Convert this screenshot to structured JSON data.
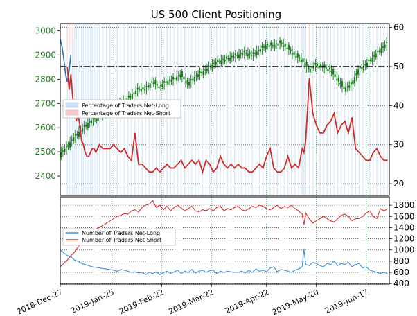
{
  "chart_data": [
    {
      "type": "line",
      "title": "US 500 Client Positioning",
      "left_axis": {
        "ticks": [
          2400,
          2500,
          2600,
          2700,
          2800,
          2900,
          3000
        ],
        "range": [
          2320,
          3030
        ],
        "color": "#1a7d1a"
      },
      "right_axis": {
        "ticks": [
          20,
          30,
          40,
          50,
          60
        ],
        "range": [
          17,
          61
        ]
      },
      "x_axis": {
        "ticks": [
          "2018-Dec-27",
          "2019-Jan-25",
          "2019-Feb-22",
          "2019-Mar-22",
          "2019-Apr-22",
          "2019-May-20",
          "2019-Jun-17"
        ],
        "tick_day_index": [
          0,
          29,
          57,
          85,
          116,
          144,
          172
        ],
        "range_days": [
          0,
          185
        ]
      },
      "reference_line": {
        "axis": "right",
        "value": 50,
        "style": "dash-dot"
      },
      "legend": {
        "placement": "left",
        "entries": [
          {
            "name": "Percentage of Traders Net-Long",
            "color": "#a9cdea"
          },
          {
            "name": "Percentage of Traders Net-Short",
            "color": "#f2a7a7"
          }
        ]
      },
      "price_series": {
        "name": "US 500 price",
        "axis": "left",
        "color": "#1d7a1d",
        "days": [
          0,
          4,
          8,
          12,
          16,
          20,
          24,
          28,
          32,
          36,
          40,
          44,
          48,
          52,
          56,
          60,
          64,
          68,
          72,
          76,
          80,
          84,
          88,
          92,
          96,
          100,
          104,
          108,
          112,
          116,
          120,
          124,
          128,
          132,
          136,
          140,
          144,
          148,
          152,
          156,
          160,
          164,
          168,
          172,
          176,
          180,
          184
        ],
        "values": [
          2490,
          2520,
          2560,
          2590,
          2620,
          2640,
          2660,
          2670,
          2690,
          2710,
          2730,
          2760,
          2760,
          2790,
          2770,
          2790,
          2800,
          2820,
          2780,
          2810,
          2830,
          2850,
          2870,
          2880,
          2890,
          2900,
          2910,
          2900,
          2920,
          2940,
          2940,
          2950,
          2930,
          2900,
          2880,
          2840,
          2860,
          2850,
          2840,
          2800,
          2760,
          2780,
          2840,
          2860,
          2890,
          2920,
          2950
        ]
      },
      "series": [
        {
          "name": "Percentage of Traders Net-Long",
          "axis": "right",
          "color": "#2c6fb5",
          "days": [
            0,
            1,
            2,
            3,
            4,
            5,
            6
          ],
          "values": [
            57,
            55,
            52,
            48,
            46,
            49,
            53
          ]
        },
        {
          "name": "Percentage of Traders Net-Short",
          "axis": "right",
          "color": "#d12a2a",
          "days": [
            4,
            5,
            6,
            7,
            8,
            9,
            10,
            11,
            12,
            13,
            14,
            15,
            16,
            17,
            18,
            19,
            20,
            21,
            22,
            24,
            26,
            28,
            30,
            32,
            34,
            36,
            38,
            40,
            42,
            44,
            46,
            48,
            50,
            52,
            54,
            56,
            58,
            60,
            62,
            64,
            66,
            68,
            70,
            72,
            74,
            76,
            78,
            80,
            82,
            84,
            86,
            88,
            90,
            92,
            94,
            96,
            98,
            100,
            102,
            104,
            106,
            108,
            110,
            112,
            114,
            116,
            118,
            120,
            122,
            124,
            126,
            128,
            130,
            132,
            134,
            136,
            137,
            138,
            140,
            142,
            144,
            146,
            148,
            150,
            152,
            154,
            156,
            158,
            160,
            162,
            164,
            166,
            168,
            170,
            172,
            174,
            176,
            178,
            180,
            182,
            184
          ],
          "values": [
            50,
            44,
            48,
            42,
            40,
            36,
            38,
            35,
            31,
            30,
            28,
            27,
            27,
            28,
            29,
            29,
            28,
            29,
            30,
            29,
            29,
            29,
            30,
            29,
            28,
            29,
            27,
            26,
            33,
            25,
            25,
            24,
            23,
            23,
            24,
            23,
            24,
            25,
            24,
            24,
            25,
            26,
            24,
            25,
            26,
            25,
            26,
            23,
            26,
            25,
            23,
            24,
            27,
            25,
            24,
            25,
            24,
            25,
            24,
            24,
            23,
            23,
            24,
            25,
            24,
            27,
            29,
            24,
            23,
            23,
            24,
            27,
            24,
            25,
            24,
            29,
            28,
            31,
            47,
            38,
            35,
            33,
            33,
            35,
            36,
            38,
            33,
            35,
            36,
            33,
            37,
            29,
            28,
            27,
            26,
            26,
            28,
            29,
            27,
            26,
            26
          ]
        }
      ]
    },
    {
      "type": "line",
      "right_axis": {
        "ticks": [
          400,
          600,
          800,
          1000,
          1200,
          1400,
          1600,
          1800
        ],
        "range": [
          390,
          1950
        ]
      },
      "legend": {
        "placement": "left",
        "entries": [
          {
            "name": "Number of Traders Net-Long",
            "color": "#3b8fdb"
          },
          {
            "name": "Number of Traders Net-Short",
            "color": "#d62f2f"
          }
        ]
      },
      "series": [
        {
          "name": "Number of Traders Net-Long",
          "color": "#3b8fdb",
          "days": [
            0,
            2,
            4,
            6,
            8,
            10,
            12,
            14,
            16,
            18,
            20,
            22,
            24,
            26,
            28,
            30,
            32,
            34,
            36,
            38,
            40,
            42,
            44,
            46,
            48,
            50,
            52,
            54,
            56,
            58,
            60,
            62,
            64,
            66,
            68,
            70,
            72,
            74,
            76,
            78,
            80,
            82,
            84,
            86,
            88,
            90,
            92,
            94,
            96,
            98,
            100,
            102,
            104,
            106,
            108,
            110,
            112,
            114,
            116,
            118,
            120,
            122,
            124,
            126,
            128,
            130,
            132,
            134,
            136,
            137,
            138,
            140,
            142,
            144,
            146,
            148,
            150,
            152,
            154,
            156,
            158,
            160,
            162,
            164,
            166,
            168,
            170,
            172,
            174,
            176,
            178,
            180,
            182,
            184
          ],
          "values": [
            1000,
            950,
            900,
            880,
            820,
            800,
            760,
            740,
            720,
            700,
            690,
            680,
            670,
            660,
            650,
            640,
            620,
            650,
            640,
            620,
            600,
            610,
            590,
            600,
            560,
            600,
            580,
            610,
            560,
            590,
            620,
            580,
            610,
            640,
            580,
            620,
            600,
            650,
            590,
            620,
            640,
            600,
            630,
            640,
            580,
            620,
            600,
            620,
            610,
            600,
            600,
            620,
            590,
            640,
            600,
            660,
            620,
            640,
            610,
            680,
            700,
            610,
            650,
            640,
            620,
            600,
            640,
            660,
            700,
            1020,
            740,
            720,
            780,
            760,
            720,
            700,
            760,
            740,
            800,
            720,
            760,
            740,
            780,
            700,
            740,
            760,
            680,
            700,
            640,
            620,
            600,
            580,
            600,
            580
          ]
        },
        {
          "name": "Number of Traders Net-Short",
          "color": "#d62f2f",
          "days": [
            0,
            2,
            4,
            6,
            8,
            10,
            12,
            14,
            16,
            18,
            20,
            22,
            24,
            26,
            28,
            30,
            32,
            34,
            36,
            38,
            40,
            42,
            44,
            46,
            48,
            50,
            52,
            54,
            56,
            58,
            60,
            62,
            64,
            66,
            68,
            70,
            72,
            74,
            76,
            78,
            80,
            82,
            84,
            86,
            88,
            90,
            92,
            94,
            96,
            98,
            100,
            102,
            104,
            106,
            108,
            110,
            112,
            114,
            116,
            118,
            120,
            122,
            124,
            126,
            128,
            130,
            132,
            134,
            136,
            137,
            138,
            140,
            142,
            144,
            146,
            148,
            150,
            152,
            154,
            156,
            158,
            160,
            162,
            164,
            166,
            168,
            170,
            172,
            174,
            176,
            178,
            180,
            182,
            184
          ],
          "values": [
            700,
            760,
            820,
            900,
            960,
            1050,
            1150,
            1250,
            1300,
            1350,
            1380,
            1400,
            1440,
            1480,
            1520,
            1560,
            1600,
            1620,
            1650,
            1640,
            1700,
            1720,
            1680,
            1760,
            1800,
            1820,
            1880,
            1760,
            1800,
            1720,
            1780,
            1700,
            1760,
            1800,
            1750,
            1700,
            1740,
            1780,
            1700,
            1680,
            1720,
            1700,
            1740,
            1700,
            1760,
            1780,
            1700,
            1740,
            1720,
            1760,
            1780,
            1720,
            1700,
            1740,
            1780,
            1760,
            1800,
            1780,
            1740,
            1720,
            1760,
            1800,
            1740,
            1780,
            1760,
            1800,
            1740,
            1700,
            1640,
            1450,
            1660,
            1560,
            1480,
            1520,
            1560,
            1600,
            1560,
            1520,
            1500,
            1560,
            1620,
            1640,
            1600,
            1520,
            1560,
            1560,
            1600,
            1660,
            1700,
            1600,
            1560,
            1740,
            1700,
            1740
          ]
        }
      ]
    }
  ]
}
